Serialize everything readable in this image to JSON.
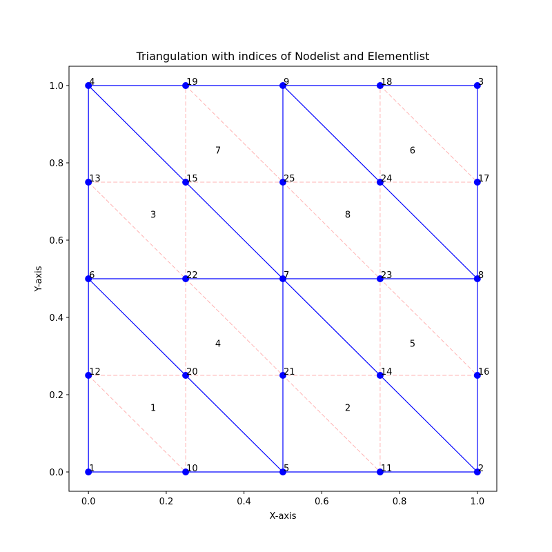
{
  "chart_data": {
    "type": "scatter",
    "title": "Triangulation with indices of Nodelist and Elementlist",
    "xlabel": "X-axis",
    "ylabel": "Y-axis",
    "xlim": [
      -0.05,
      1.05
    ],
    "ylim": [
      -0.05,
      1.05
    ],
    "xticks": [
      0.0,
      0.2,
      0.4,
      0.6,
      0.8,
      1.0
    ],
    "yticks": [
      0.0,
      0.2,
      0.4,
      0.6,
      0.8,
      1.0
    ],
    "xtick_labels": [
      "0.0",
      "0.2",
      "0.4",
      "0.6",
      "0.8",
      "1.0"
    ],
    "ytick_labels": [
      "0.0",
      "0.2",
      "0.4",
      "0.6",
      "0.8",
      "1.0"
    ],
    "grid": false,
    "colors": {
      "mesh": "#0000ff",
      "node": "#0000ff",
      "sub_mesh": "#ffb3b3"
    },
    "nodes": [
      {
        "id": "1",
        "x": 0.0,
        "y": 0.0
      },
      {
        "id": "2",
        "x": 1.0,
        "y": 0.0
      },
      {
        "id": "3",
        "x": 1.0,
        "y": 1.0
      },
      {
        "id": "4",
        "x": 0.0,
        "y": 1.0
      },
      {
        "id": "5",
        "x": 0.5,
        "y": 0.0
      },
      {
        "id": "6",
        "x": 0.0,
        "y": 0.5
      },
      {
        "id": "7",
        "x": 0.5,
        "y": 0.5
      },
      {
        "id": "8",
        "x": 1.0,
        "y": 0.5
      },
      {
        "id": "9",
        "x": 0.5,
        "y": 1.0
      },
      {
        "id": "10",
        "x": 0.25,
        "y": 0.0
      },
      {
        "id": "11",
        "x": 0.75,
        "y": 0.0
      },
      {
        "id": "12",
        "x": 0.0,
        "y": 0.25
      },
      {
        "id": "13",
        "x": 0.0,
        "y": 0.75
      },
      {
        "id": "14",
        "x": 0.75,
        "y": 0.25
      },
      {
        "id": "15",
        "x": 0.25,
        "y": 0.75
      },
      {
        "id": "16",
        "x": 1.0,
        "y": 0.25
      },
      {
        "id": "17",
        "x": 1.0,
        "y": 0.75
      },
      {
        "id": "18",
        "x": 0.75,
        "y": 1.0
      },
      {
        "id": "19",
        "x": 0.25,
        "y": 1.0
      },
      {
        "id": "20",
        "x": 0.25,
        "y": 0.25
      },
      {
        "id": "21",
        "x": 0.5,
        "y": 0.25
      },
      {
        "id": "22",
        "x": 0.25,
        "y": 0.5
      },
      {
        "id": "23",
        "x": 0.75,
        "y": 0.5
      },
      {
        "id": "24",
        "x": 0.75,
        "y": 0.75
      },
      {
        "id": "25",
        "x": 0.5,
        "y": 0.75
      }
    ],
    "elements": [
      {
        "id": "1",
        "x": 0.1667,
        "y": 0.1667
      },
      {
        "id": "2",
        "x": 0.6667,
        "y": 0.1667
      },
      {
        "id": "3",
        "x": 0.1667,
        "y": 0.6667
      },
      {
        "id": "4",
        "x": 0.3333,
        "y": 0.3333
      },
      {
        "id": "5",
        "x": 0.8333,
        "y": 0.3333
      },
      {
        "id": "6",
        "x": 0.8333,
        "y": 0.8333
      },
      {
        "id": "7",
        "x": 0.3333,
        "y": 0.8333
      },
      {
        "id": "8",
        "x": 0.6667,
        "y": 0.6667
      }
    ],
    "mesh_edges": [
      [
        [
          0.0,
          0.0
        ],
        [
          1.0,
          0.0
        ]
      ],
      [
        [
          1.0,
          0.0
        ],
        [
          1.0,
          1.0
        ]
      ],
      [
        [
          1.0,
          1.0
        ],
        [
          0.0,
          1.0
        ]
      ],
      [
        [
          0.0,
          1.0
        ],
        [
          0.0,
          0.0
        ]
      ],
      [
        [
          0.0,
          0.5
        ],
        [
          1.0,
          0.5
        ]
      ],
      [
        [
          0.5,
          0.0
        ],
        [
          0.5,
          1.0
        ]
      ],
      [
        [
          0.0,
          0.5
        ],
        [
          0.5,
          0.0
        ]
      ],
      [
        [
          0.0,
          1.0
        ],
        [
          1.0,
          0.0
        ]
      ],
      [
        [
          0.5,
          1.0
        ],
        [
          1.0,
          0.5
        ]
      ]
    ],
    "sub_edges": [
      [
        [
          0.0,
          0.25
        ],
        [
          1.0,
          0.25
        ]
      ],
      [
        [
          0.0,
          0.75
        ],
        [
          1.0,
          0.75
        ]
      ],
      [
        [
          0.25,
          0.0
        ],
        [
          0.25,
          1.0
        ]
      ],
      [
        [
          0.75,
          0.0
        ],
        [
          0.75,
          1.0
        ]
      ],
      [
        [
          0.0,
          0.25
        ],
        [
          0.25,
          0.0
        ]
      ],
      [
        [
          0.0,
          0.75
        ],
        [
          0.75,
          0.0
        ]
      ],
      [
        [
          0.25,
          1.0
        ],
        [
          1.0,
          0.25
        ]
      ],
      [
        [
          0.75,
          1.0
        ],
        [
          1.0,
          0.75
        ]
      ]
    ]
  }
}
